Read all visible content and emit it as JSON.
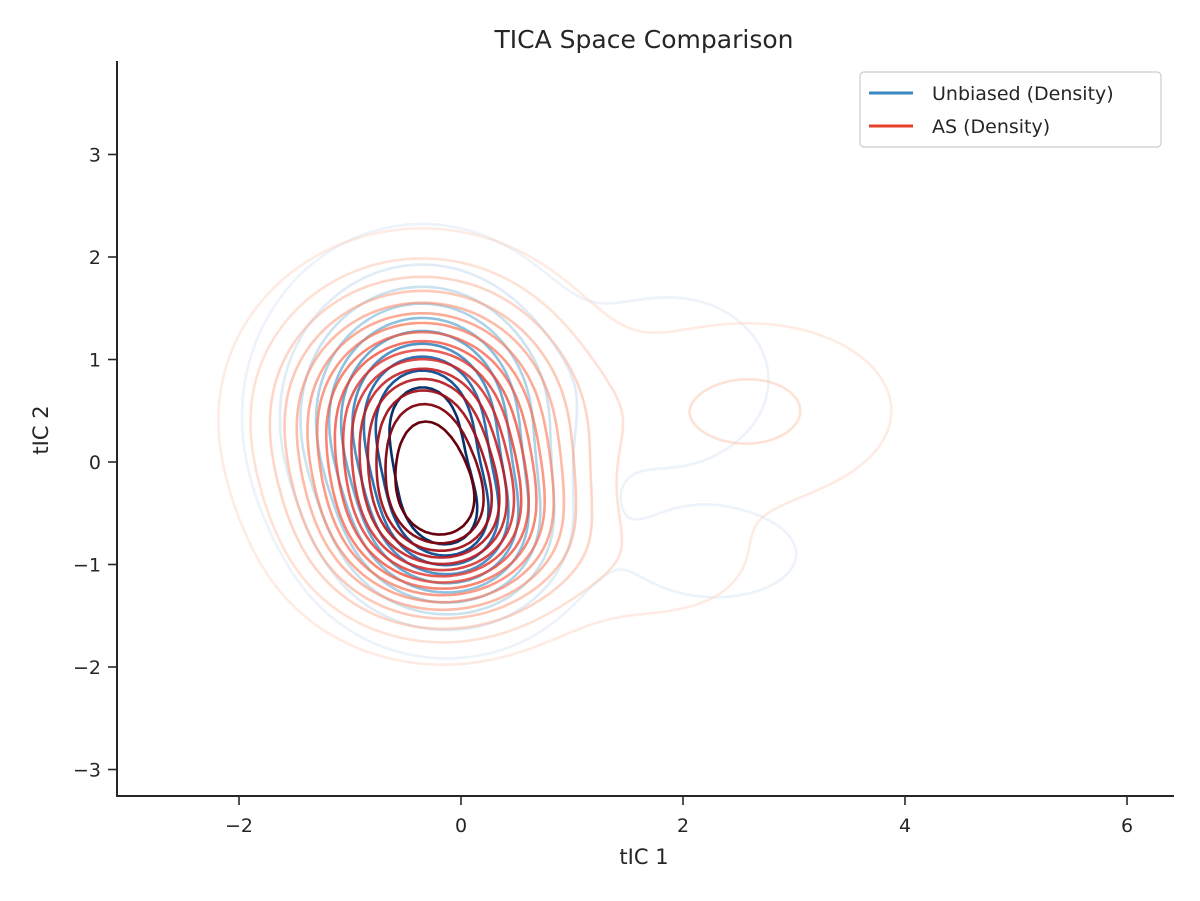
{
  "chart_data": {
    "type": "contour",
    "title": "TICA Space Comparison",
    "xlabel": "tIC 1",
    "ylabel": "tIC 2",
    "xlim": [
      -3.2,
      6.4
    ],
    "ylim": [
      -3.3,
      3.9
    ],
    "x_ticks": [
      "−2",
      "0",
      "2",
      "4",
      "6"
    ],
    "x_tick_values": [
      -2,
      0,
      2,
      4,
      6
    ],
    "y_ticks": [
      "−3",
      "−2",
      "−1",
      "0",
      "1",
      "2",
      "3"
    ],
    "y_tick_values": [
      -3,
      -2,
      -1,
      0,
      1,
      2,
      3
    ],
    "grid": false,
    "legend_position": "top-right",
    "series": [
      {
        "name": "Unbiased (Density)",
        "color": "#3a87c2",
        "colormap": "Blues",
        "modes": [
          {
            "x": -0.35,
            "y": 0.45,
            "sx": 0.65,
            "sy": 0.75,
            "w": 0.55
          },
          {
            "x": -0.1,
            "y": -0.7,
            "sx": 0.55,
            "sy": 0.5,
            "w": 0.4
          },
          {
            "x": 1.9,
            "y": 0.8,
            "sx": 0.6,
            "sy": 0.55,
            "w": 0.07
          },
          {
            "x": 2.3,
            "y": -0.9,
            "sx": 0.6,
            "sy": 0.35,
            "w": 0.05
          }
        ],
        "levels": 10
      },
      {
        "name": "AS (Density)",
        "color": "#e5402c",
        "colormap": "Reds",
        "modes": [
          {
            "x": -0.35,
            "y": 0.45,
            "sx": 0.75,
            "sy": 0.75,
            "w": 0.5
          },
          {
            "x": -0.15,
            "y": -0.65,
            "sx": 0.65,
            "sy": 0.55,
            "w": 0.42
          },
          {
            "x": 2.6,
            "y": 0.5,
            "sx": 0.9,
            "sy": 0.6,
            "w": 0.07
          },
          {
            "x": 1.8,
            "y": -1.0,
            "sx": 0.7,
            "sy": 0.45,
            "w": 0.04
          }
        ],
        "levels": 16
      }
    ]
  }
}
